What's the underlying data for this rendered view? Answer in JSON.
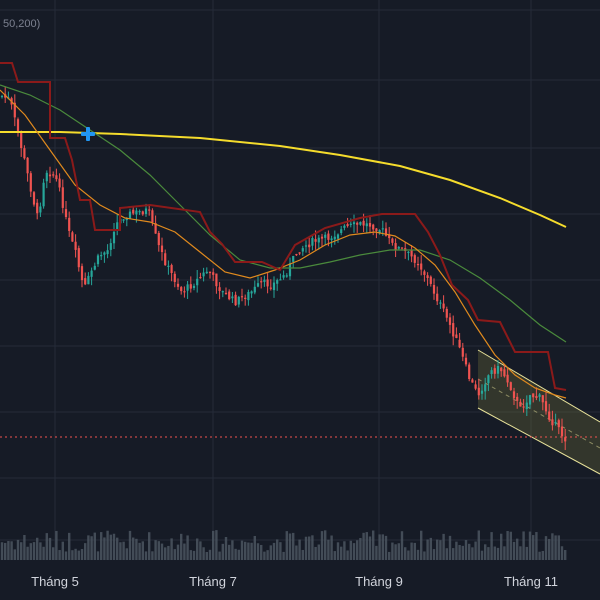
{
  "corner_text": "50,200)",
  "colors": {
    "background": "#161b26",
    "grid": "#252b38",
    "up": "#26a69a",
    "down": "#ef5350",
    "ma_long": "#f5dc2c",
    "ma_mid": "#4a8a3c",
    "ma_short": "#e08a1e",
    "stop_line": "#8b1a1a",
    "price_line": "#ef5350",
    "marker": "#2196f3",
    "channel_fill": "#6b6a3a",
    "channel_border": "#e8e29a",
    "volume": "#4b5560"
  },
  "chart_data": {
    "type": "candlestick",
    "title": "",
    "xlabel": "",
    "ylabel": "",
    "x_tick_labels": [
      "Tháng 5",
      "Tháng 7",
      "Tháng 9",
      "Tháng 11"
    ],
    "grid": true,
    "indicators": [
      {
        "type": "moving_average",
        "period": 200,
        "color": "#f5dc2c"
      },
      {
        "type": "moving_average",
        "period": 50,
        "color": "#4a8a3c"
      },
      {
        "type": "moving_average",
        "period": 20,
        "color": "#e08a1e"
      },
      {
        "type": "trailing_stop",
        "color": "#8b1a1a"
      },
      {
        "type": "descending_channel",
        "color": "#e8e29a"
      },
      {
        "type": "volume"
      }
    ]
  }
}
